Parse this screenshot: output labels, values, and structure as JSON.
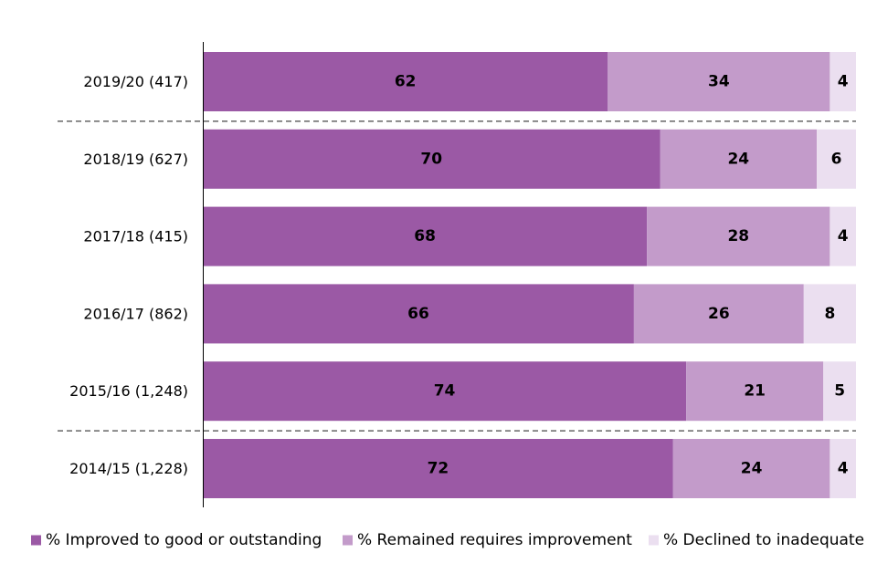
{
  "chart_data": {
    "type": "bar",
    "orientation": "horizontal",
    "stacked": true,
    "categories": [
      "2019/20 (417)",
      "2018/19 (627)",
      "2017/18 (415)",
      "2016/17 (862)",
      "2015/16 (1,248)",
      "2014/15 (1,228)"
    ],
    "series": [
      {
        "name": "% Improved to good or outstanding",
        "color": "#9b59a5",
        "values": [
          62,
          70,
          68,
          66,
          74,
          72
        ]
      },
      {
        "name": "% Remained requires improvement",
        "color": "#c39bca",
        "values": [
          34,
          24,
          28,
          26,
          21,
          24
        ]
      },
      {
        "name": "% Declined to inadequate",
        "color": "#ebdff0",
        "values": [
          4,
          6,
          4,
          8,
          5,
          4
        ]
      }
    ],
    "xlim": [
      0,
      100
    ],
    "data_labels": true,
    "dashed_separators_after": [
      "2019/20 (417)",
      "2015/16 (1,248)"
    ],
    "legend_position": "bottom",
    "grid": false,
    "title": "",
    "xlabel": "",
    "ylabel": ""
  }
}
